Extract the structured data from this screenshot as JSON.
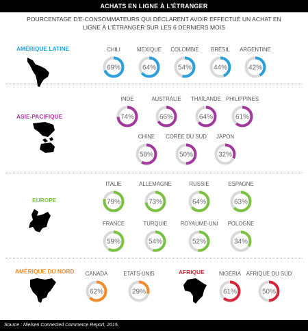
{
  "header": {
    "title": "ACHATS EN LIGNE À L'ÉTRANGER"
  },
  "subtitle": "POURCENTAGE D'E-CONSOMMATEURS QUI DÉCLARENT AVOIR EFFECTUÉ UN ACHAT EN LIGNE À L'ÉTRANGER SUR LES 6 DERNIERS MOIS",
  "footer": "Source : Nielsen Connected Commerce Report, 2015.",
  "chart_data": {
    "type": "donut",
    "unit": "%",
    "regions": [
      {
        "name": "AMÉRIQUE LATINE",
        "color": "#2b9fd9",
        "countries": [
          {
            "name": "CHILI",
            "value": 69
          },
          {
            "name": "MEXIQUE",
            "value": 64
          },
          {
            "name": "COLOMBIE",
            "value": 54
          },
          {
            "name": "BRÉSIL",
            "value": 44
          },
          {
            "name": "ARGENTINE",
            "value": 42
          }
        ]
      },
      {
        "name": "ASIE-PACIFIQUE",
        "color": "#a2399c",
        "countries": [
          {
            "name": "INDE",
            "value": 74
          },
          {
            "name": "AUSTRALIE",
            "value": 66
          },
          {
            "name": "THAÏLANDE",
            "value": 64
          },
          {
            "name": "PHILIPPINES",
            "value": 61
          },
          {
            "name": "CHINE",
            "value": 58
          },
          {
            "name": "CORÉE DU SUD",
            "value": 50
          },
          {
            "name": "JAPON",
            "value": 32
          }
        ]
      },
      {
        "name": "EUROPE",
        "color": "#7cc242",
        "countries": [
          {
            "name": "ITALIE",
            "value": 79
          },
          {
            "name": "ALLEMAGNE",
            "value": 73
          },
          {
            "name": "RUSSIE",
            "value": 64
          },
          {
            "name": "ESPAGNE",
            "value": 63
          },
          {
            "name": "FRANCE",
            "value": 59
          },
          {
            "name": "TURQUIE",
            "value": 54
          },
          {
            "name": "ROYAUME-UNI",
            "value": 52
          },
          {
            "name": "POLOGNE",
            "value": 34
          }
        ]
      },
      {
        "name": "AMÉRIQUE DU NORD",
        "color": "#f08c2b",
        "countries": [
          {
            "name": "CANADA",
            "value": 62
          },
          {
            "name": "ETATS-UNIS",
            "value": 29
          }
        ]
      },
      {
        "name": "AFRIQUE",
        "color": "#d3263b",
        "countries": [
          {
            "name": "NIGÉRIA",
            "value": 61
          },
          {
            "name": "AFRIQUE DU SUD",
            "value": 50
          }
        ]
      }
    ]
  }
}
